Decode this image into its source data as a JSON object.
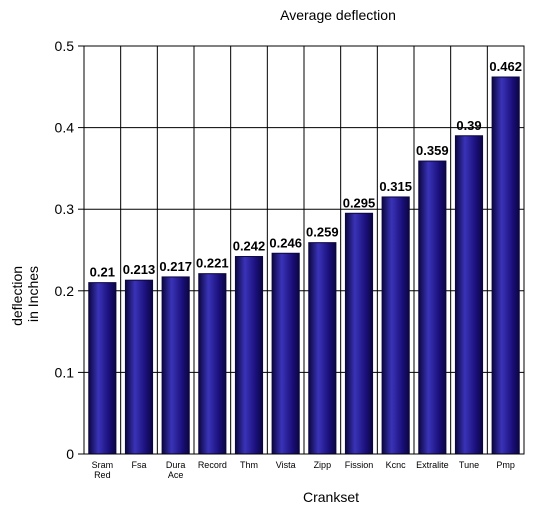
{
  "chart_data": {
    "type": "bar",
    "title": "Average deflection",
    "xlabel": "Crankset",
    "ylabel": [
      "deflection",
      "in Inches"
    ],
    "categories": [
      [
        "Sram",
        "Red"
      ],
      [
        "Fsa"
      ],
      [
        "Dura",
        "Ace"
      ],
      [
        "Record"
      ],
      [
        "Thm"
      ],
      [
        "Vista"
      ],
      [
        "Zipp"
      ],
      [
        "Fission"
      ],
      [
        "Kcnc"
      ],
      [
        "Extralite"
      ],
      [
        "Tune"
      ],
      [
        "Pmp"
      ]
    ],
    "values": [
      0.21,
      0.213,
      0.217,
      0.221,
      0.242,
      0.246,
      0.259,
      0.295,
      0.315,
      0.359,
      0.39,
      0.462
    ],
    "value_labels": [
      "0.21",
      "0.213",
      "0.217",
      "0.221",
      "0.242",
      "0.246",
      "0.259",
      "0.295",
      "0.315",
      "0.359",
      "0.39",
      "0.462"
    ],
    "ylim": [
      0,
      0.5
    ],
    "yticks": [
      "0",
      "0.1",
      "0.2",
      "0.3",
      "0.4",
      "0.5"
    ],
    "grid": "vertical and horizontal",
    "legend": "none",
    "colors": {
      "bar": "#1a0f7a",
      "bar_highlight": "#3a33b8",
      "bar_edge": "#0b0640",
      "grid": "#000000"
    }
  }
}
